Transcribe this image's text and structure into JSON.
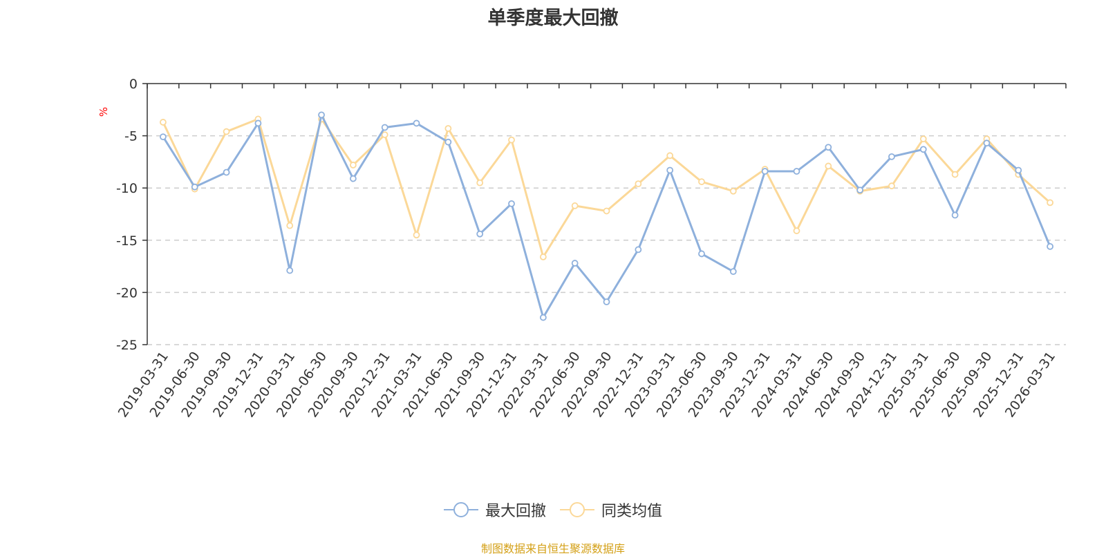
{
  "chart_data": {
    "type": "line",
    "title": "单季度最大回撤",
    "ylabel": "%",
    "ylim": [
      -25,
      0
    ],
    "yticks": [
      0,
      -5,
      -10,
      -15,
      -20,
      -25
    ],
    "grid": true,
    "legend_position": "bottom",
    "categories": [
      "2019-03-31",
      "2019-06-30",
      "2019-09-30",
      "2019-12-31",
      "2020-03-31",
      "2020-06-30",
      "2020-09-30",
      "2020-12-31",
      "2021-03-31",
      "2021-06-30",
      "2021-09-30",
      "2021-12-31",
      "2022-03-31",
      "2022-06-30",
      "2022-09-30",
      "2022-12-31",
      "2023-03-31",
      "2023-06-30",
      "2023-09-30",
      "2023-12-31",
      "2024-03-31",
      "2024-06-30",
      "2024-09-30",
      "2024-12-31",
      "2025-03-31",
      "2025-06-30",
      "2025-09-30",
      "2025-12-31",
      "2026-03-31"
    ],
    "series": [
      {
        "name": "最大回撤",
        "color": "#8eb0dc",
        "values": [
          -5.1,
          -9.9,
          -8.5,
          -3.8,
          -17.9,
          -3.0,
          -9.1,
          -4.2,
          -3.8,
          -5.6,
          -14.4,
          -11.5,
          -22.4,
          -17.2,
          -20.9,
          -15.9,
          -8.3,
          -16.3,
          -18.0,
          -8.4,
          -8.4,
          -6.1,
          -10.2,
          -7.0,
          -6.3,
          -12.6,
          -5.7,
          -8.3,
          -15.6
        ]
      },
      {
        "name": "同类均值",
        "color": "#fbd898",
        "values": [
          -3.7,
          -10.1,
          -4.6,
          -3.4,
          -13.6,
          -3.4,
          -7.8,
          -4.9,
          -14.5,
          -4.3,
          -9.5,
          -5.4,
          -16.6,
          -11.7,
          -12.2,
          -9.6,
          -6.9,
          -9.4,
          -10.3,
          -8.2,
          -14.1,
          -7.9,
          -10.3,
          -9.8,
          -5.3,
          -8.7,
          -5.3,
          -8.7,
          -11.4
        ]
      }
    ]
  },
  "legend": {
    "items": [
      {
        "label": "最大回撤",
        "color": "#8eb0dc"
      },
      {
        "label": "同类均值",
        "color": "#fbd898"
      }
    ]
  },
  "footer": {
    "source": "制图数据来自恒生聚源数据库"
  }
}
